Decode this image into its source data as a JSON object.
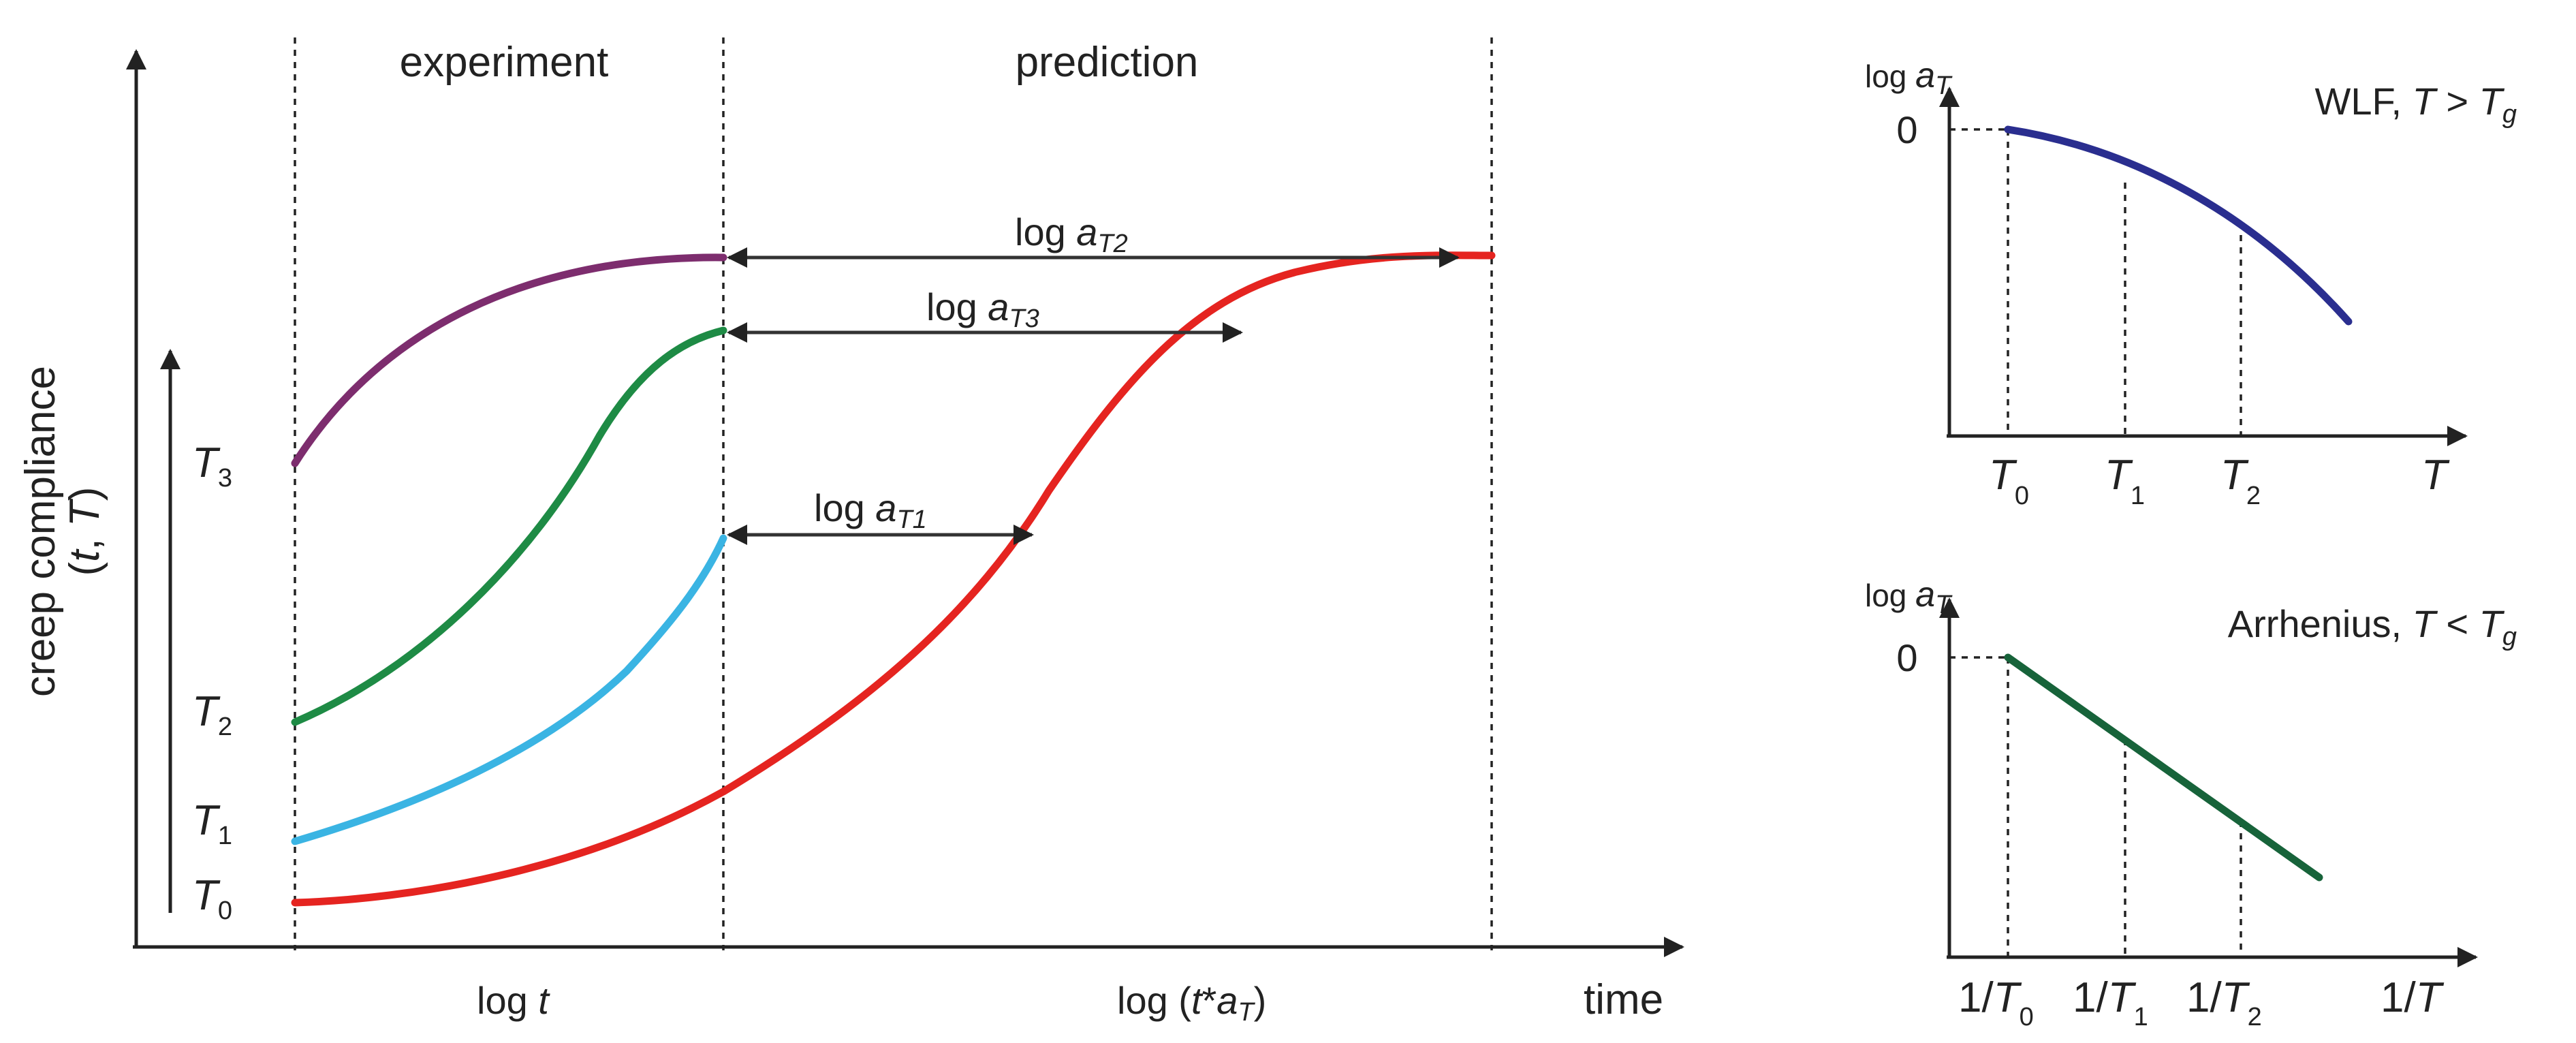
{
  "main": {
    "headers": {
      "experiment": "experiment",
      "prediction": "prediction"
    },
    "y_axis": {
      "label_line1": "creep compliance",
      "label_line2_open": "(",
      "t": "t",
      "sep": ", ",
      "T": "T",
      "label_line2_close": ")"
    },
    "temps": [
      {
        "base": "T",
        "sub": "3"
      },
      {
        "base": "T",
        "sub": "2"
      },
      {
        "base": "T",
        "sub": "1"
      },
      {
        "base": "T",
        "sub": "0"
      }
    ],
    "shifts": [
      {
        "log": "log ",
        "a": "a",
        "sub": "T2"
      },
      {
        "log": "log ",
        "a": "a",
        "sub": "T3"
      },
      {
        "log": "log ",
        "a": "a",
        "sub": "T1"
      }
    ],
    "x_labels": {
      "log_t_prefix": "log ",
      "log_t_var": "t",
      "log_tat_prefix": "log (",
      "log_tat_var": "t",
      "log_tat_mid": "*",
      "log_tat_a": "a",
      "log_tat_sub": "T",
      "log_tat_close": ")",
      "time": "time"
    },
    "colors": {
      "T3": "#7d2d6e",
      "T2": "#1e8b45",
      "T1": "#3ab4e3",
      "T0": "#e52420"
    }
  },
  "wlf": {
    "title_prefix": "WLF, ",
    "title_T": "T",
    "title_cmp": " > ",
    "title_Tg": "T",
    "title_g": "g",
    "ylabel_log": "log ",
    "ylabel_a": "a",
    "ylabel_sub": "T",
    "zero": "0",
    "ticks": [
      {
        "base": "T",
        "sub": "0"
      },
      {
        "base": "T",
        "sub": "1"
      },
      {
        "base": "T",
        "sub": "2"
      }
    ],
    "xlabel": "T",
    "color": "#2a2e8f"
  },
  "arrhenius": {
    "title_prefix": "Arrhenius, ",
    "title_T": "T",
    "title_cmp": " < ",
    "title_Tg": "T",
    "title_g": "g",
    "ylabel_log": "log ",
    "ylabel_a": "a",
    "ylabel_sub": "T",
    "zero": "0",
    "ticks": [
      {
        "pre": "1/",
        "base": "T",
        "sub": "0"
      },
      {
        "pre": "1/",
        "base": "T",
        "sub": "1"
      },
      {
        "pre": "1/",
        "base": "T",
        "sub": "2"
      }
    ],
    "xlabel_pre": "1/",
    "xlabel": "T",
    "color": "#17633a"
  }
}
